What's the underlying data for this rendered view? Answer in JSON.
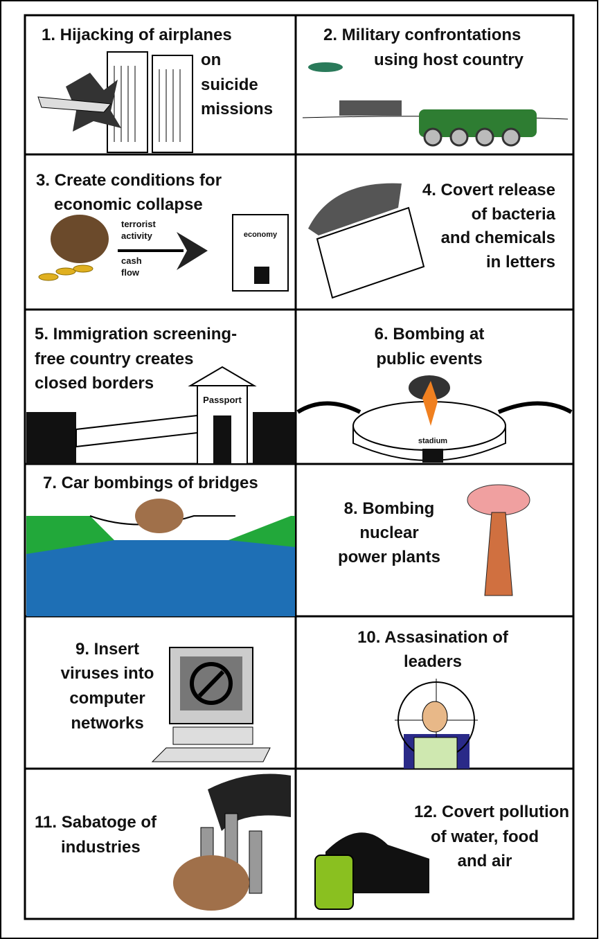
{
  "panels": [
    {
      "lines": [
        "1. Hijacking of airplanes",
        "on",
        "suicide",
        "missions"
      ]
    },
    {
      "lines": [
        "2. Military confrontations",
        "using host country"
      ]
    },
    {
      "lines": [
        "3. Create conditions for",
        "economic collapse"
      ],
      "labels": [
        "terrorist",
        "activity",
        "cash",
        "flow",
        "economy"
      ]
    },
    {
      "lines": [
        "4. Covert release",
        "of bacteria",
        "and chemicals",
        "in letters"
      ]
    },
    {
      "lines": [
        "5. Immigration screening-",
        "free country creates",
        "closed borders"
      ],
      "labels": [
        "Passport"
      ]
    },
    {
      "lines": [
        "6. Bombing at",
        "public events"
      ],
      "labels": [
        "stadium"
      ]
    },
    {
      "lines": [
        "7. Car bombings of bridges"
      ]
    },
    {
      "lines": [
        "8. Bombing",
        "nuclear",
        "power plants"
      ]
    },
    {
      "lines": [
        "9. Insert",
        "viruses into",
        "computer",
        "networks"
      ]
    },
    {
      "lines": [
        "10. Assasination of",
        "leaders"
      ]
    },
    {
      "lines": [
        "11. Sabatoge of",
        "industries"
      ]
    },
    {
      "lines": [
        "12. Covert pollution",
        "of water, food",
        "and air"
      ]
    }
  ]
}
